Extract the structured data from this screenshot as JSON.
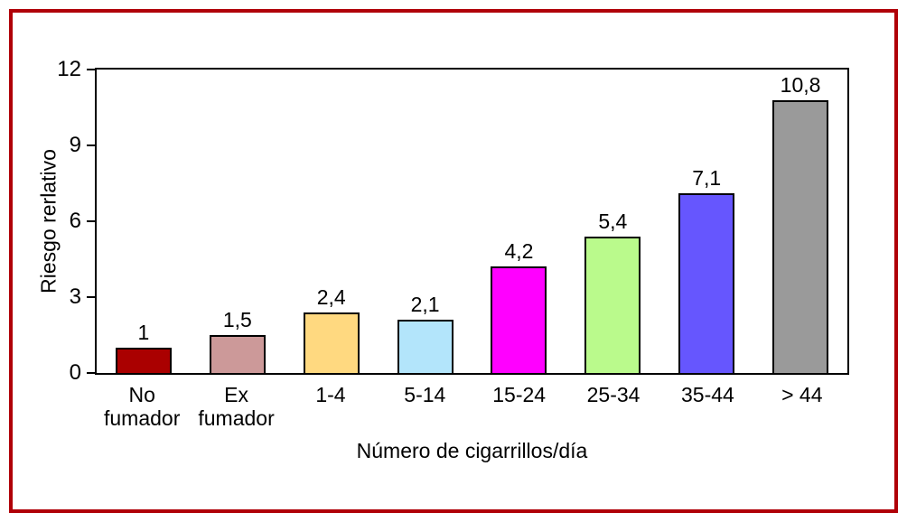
{
  "figure": {
    "frame_color": "#B00008",
    "background": "#FFFFFF"
  },
  "chart_data": {
    "type": "bar",
    "title": "",
    "xlabel": "Número de cigarrillos/día",
    "ylabel": "Riesgo rerlativo",
    "categories": [
      "No\nfumador",
      "Ex\nfumador",
      "1-4",
      "5-14",
      "15-24",
      "25-34",
      "35-44",
      "> 44"
    ],
    "values": [
      1,
      1.5,
      2.4,
      2.1,
      4.2,
      5.4,
      7.1,
      10.8
    ],
    "value_labels": [
      "1",
      "1,5",
      "2,4",
      "2,1",
      "4,2",
      "5,4",
      "7,1",
      "10,8"
    ],
    "bar_colors": [
      "#AA0000",
      "#CC9999",
      "#FFD980",
      "#B3E5FB",
      "#FF00FF",
      "#BAFA8C",
      "#6656FE",
      "#9A9A9A"
    ],
    "bar_outline_color": "#000000",
    "ylim": [
      0,
      12
    ],
    "yticks": [
      0,
      3,
      6,
      9,
      12
    ],
    "grid": false,
    "legend": null,
    "plot_border": "full-box",
    "decimal_separator": ","
  }
}
